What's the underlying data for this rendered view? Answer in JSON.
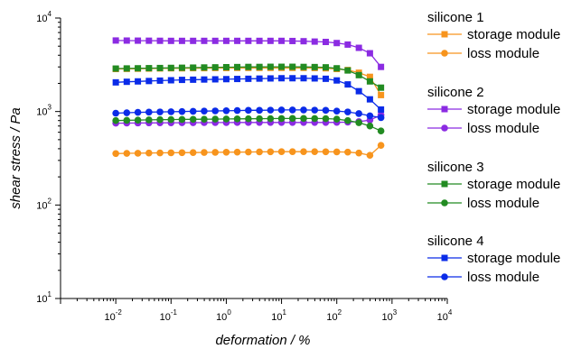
{
  "chart_data": {
    "type": "line",
    "xlabel": "deformation / %",
    "ylabel": "shear stress / Pa",
    "xscale": "log",
    "yscale": "log",
    "xlim": [
      0.001,
      10000
    ],
    "ylim": [
      10,
      10000
    ],
    "grid": false,
    "legend_position": "right",
    "x_ticks": [
      {
        "base": "10",
        "exp": "-2",
        "value": 0.01
      },
      {
        "base": "10",
        "exp": "-1",
        "value": 0.1
      },
      {
        "base": "10",
        "exp": "0",
        "value": 1
      },
      {
        "base": "10",
        "exp": "1",
        "value": 10
      },
      {
        "base": "10",
        "exp": "2",
        "value": 100
      },
      {
        "base": "10",
        "exp": "3",
        "value": 1000
      },
      {
        "base": "10",
        "exp": "4",
        "value": 10000
      }
    ],
    "y_ticks": [
      {
        "base": "10",
        "exp": "1",
        "value": 10
      },
      {
        "base": "10",
        "exp": "2",
        "value": 100
      },
      {
        "base": "10",
        "exp": "3",
        "value": 1000
      },
      {
        "base": "10",
        "exp": "4",
        "value": 10000
      }
    ],
    "x": [
      0.01,
      0.0158,
      0.0251,
      0.0398,
      0.0631,
      0.1,
      0.158,
      0.251,
      0.398,
      0.631,
      1,
      1.58,
      2.51,
      3.98,
      6.31,
      10,
      15.8,
      25.1,
      39.8,
      63.1,
      100,
      158,
      251,
      398,
      631
    ],
    "groups": [
      {
        "title": "silicone 1",
        "color": "#F7941D",
        "series": [
          {
            "name": "storage module",
            "marker": "square",
            "x": [
              0.01,
              0.0158,
              0.0251,
              0.0398,
              0.0631,
              0.1,
              0.158,
              0.251,
              0.398,
              0.631,
              1,
              1.58,
              2.51,
              3.98,
              6.31,
              10,
              15.8,
              25.1,
              39.8,
              63.1,
              100,
              158,
              251,
              398,
              631
            ],
            "values": [
              2850,
              2860,
              2870,
              2880,
              2890,
              2900,
              2900,
              2910,
              2910,
              2920,
              2920,
              2930,
              2930,
              2930,
              2930,
              2930,
              2930,
              2930,
              2920,
              2900,
              2850,
              2780,
              2600,
              2350,
              1500
            ]
          },
          {
            "name": "loss module",
            "marker": "circle",
            "x": [
              0.01,
              0.0158,
              0.0251,
              0.0398,
              0.0631,
              0.1,
              0.158,
              0.251,
              0.398,
              0.631,
              1,
              1.58,
              2.51,
              3.98,
              6.31,
              10,
              15.8,
              25.1,
              39.8,
              63.1,
              100,
              158,
              251,
              398,
              631
            ],
            "values": [
              355,
              357,
              358,
              360,
              361,
              362,
              363,
              364,
              365,
              366,
              367,
              368,
              369,
              370,
              371,
              372,
              372,
              372,
              372,
              371,
              370,
              368,
              360,
              340,
              435
            ]
          }
        ]
      },
      {
        "title": "silicone 2",
        "color": "#8B2BE2",
        "series": [
          {
            "name": "storage module",
            "marker": "square",
            "x": [
              0.01,
              0.0158,
              0.0251,
              0.0398,
              0.0631,
              0.1,
              0.158,
              0.251,
              0.398,
              0.631,
              1,
              1.58,
              2.51,
              3.98,
              6.31,
              10,
              15.8,
              25.1,
              39.8,
              63.1,
              100,
              158,
              251,
              398,
              631
            ],
            "values": [
              5750,
              5740,
              5730,
              5720,
              5710,
              5700,
              5700,
              5700,
              5700,
              5700,
              5700,
              5700,
              5700,
              5700,
              5700,
              5700,
              5680,
              5650,
              5600,
              5550,
              5400,
              5200,
              4800,
              4200,
              3000
            ]
          },
          {
            "name": "loss module",
            "marker": "circle",
            "x": [
              0.01,
              0.0158,
              0.0251,
              0.0398,
              0.0631,
              0.1,
              0.158,
              0.251,
              0.398,
              0.631,
              1,
              1.58,
              2.51,
              3.98,
              6.31,
              10,
              15.8,
              25.1,
              39.8,
              63.1,
              100,
              158,
              251,
              398,
              631
            ],
            "values": [
              750,
              752,
              754,
              756,
              757,
              758,
              759,
              760,
              761,
              762,
              762,
              763,
              763,
              764,
              764,
              764,
              764,
              764,
              764,
              764,
              765,
              770,
              780,
              810,
              920
            ]
          }
        ]
      },
      {
        "title": "silicone 3",
        "color": "#228B22",
        "series": [
          {
            "name": "storage module",
            "marker": "square",
            "x": [
              0.01,
              0.0158,
              0.0251,
              0.0398,
              0.0631,
              0.1,
              0.158,
              0.251,
              0.398,
              0.631,
              1,
              1.58,
              2.51,
              3.98,
              6.31,
              10,
              15.8,
              25.1,
              39.8,
              63.1,
              100,
              158,
              251,
              398,
              631
            ],
            "values": [
              2880,
              2890,
              2900,
              2910,
              2920,
              2930,
              2940,
              2950,
              2960,
              2970,
              2980,
              2990,
              3000,
              3000,
              3010,
              3010,
              3010,
              3000,
              2990,
              2970,
              2900,
              2750,
              2450,
              2100,
              1800
            ]
          },
          {
            "name": "loss module",
            "marker": "circle",
            "x": [
              0.01,
              0.0158,
              0.0251,
              0.0398,
              0.0631,
              0.1,
              0.158,
              0.251,
              0.398,
              0.631,
              1,
              1.58,
              2.51,
              3.98,
              6.31,
              10,
              15.8,
              25.1,
              39.8,
              63.1,
              100,
              158,
              251,
              398,
              631
            ],
            "values": [
              800,
              805,
              810,
              815,
              818,
              820,
              823,
              826,
              828,
              830,
              832,
              834,
              836,
              838,
              840,
              842,
              843,
              843,
              842,
              840,
              830,
              800,
              760,
              700,
              620
            ]
          }
        ]
      },
      {
        "title": "silicone 4",
        "color": "#0A2BE8",
        "series": [
          {
            "name": "storage module",
            "marker": "square",
            "x": [
              0.01,
              0.0158,
              0.0251,
              0.0398,
              0.0631,
              0.1,
              0.158,
              0.251,
              0.398,
              0.631,
              1,
              1.58,
              2.51,
              3.98,
              6.31,
              10,
              15.8,
              25.1,
              39.8,
              63.1,
              100,
              158,
              251,
              398,
              631
            ],
            "values": [
              2050,
              2080,
              2100,
              2120,
              2140,
              2160,
              2180,
              2190,
              2200,
              2210,
              2220,
              2230,
              2240,
              2250,
              2260,
              2270,
              2270,
              2270,
              2260,
              2240,
              2150,
              1950,
              1650,
              1350,
              1050
            ]
          },
          {
            "name": "loss module",
            "marker": "circle",
            "x": [
              0.01,
              0.0158,
              0.0251,
              0.0398,
              0.0631,
              0.1,
              0.158,
              0.251,
              0.398,
              0.631,
              1,
              1.58,
              2.51,
              3.98,
              6.31,
              10,
              15.8,
              25.1,
              39.8,
              63.1,
              100,
              158,
              251,
              398,
              631
            ],
            "values": [
              960,
              970,
              980,
              985,
              990,
              995,
              1000,
              1005,
              1010,
              1015,
              1020,
              1025,
              1030,
              1030,
              1035,
              1040,
              1040,
              1040,
              1035,
              1030,
              1010,
              990,
              950,
              900,
              860
            ]
          }
        ]
      }
    ]
  }
}
